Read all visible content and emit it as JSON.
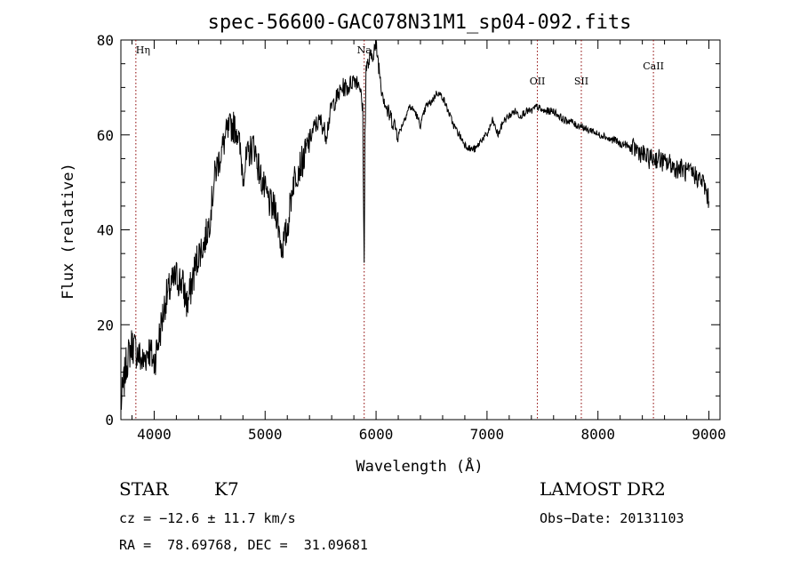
{
  "chart_data": {
    "type": "line",
    "title": "spec-56600-GAC078N31M1_sp04-092.fits",
    "xlabel": "Wavelength (Å)",
    "ylabel": "Flux (relative)",
    "xlim": [
      3700,
      9100
    ],
    "ylim": [
      0,
      80
    ],
    "xticks": [
      4000,
      5000,
      6000,
      7000,
      8000,
      9000
    ],
    "yticks": [
      0,
      20,
      40,
      60,
      80
    ],
    "grid": false,
    "series": [
      {
        "x": [
          3700,
          3750,
          3800,
          3850,
          3900,
          3950,
          4000,
          4050,
          4100,
          4150,
          4200,
          4250,
          4300,
          4350,
          4400,
          4450,
          4500,
          4550,
          4600,
          4650,
          4700,
          4750,
          4800,
          4850,
          4900,
          4950,
          5000,
          5050,
          5100,
          5150,
          5200,
          5250,
          5300,
          5350,
          5400,
          5450,
          5500,
          5550,
          5600,
          5650,
          5700,
          5750,
          5800,
          5850,
          5880,
          5893,
          5900,
          5910,
          5950,
          6000,
          6050,
          6100,
          6150,
          6200,
          6250,
          6300,
          6350,
          6400,
          6450,
          6500,
          6550,
          6600,
          6650,
          6700,
          6750,
          6800,
          6850,
          6900,
          6950,
          7000,
          7050,
          7100,
          7150,
          7200,
          7250,
          7300,
          7350,
          7400,
          7450,
          7500,
          7550,
          7600,
          7650,
          7700,
          7750,
          7800,
          7850,
          7900,
          7950,
          8000,
          8050,
          8100,
          8150,
          8200,
          8250,
          8300,
          8350,
          8400,
          8450,
          8500,
          8550,
          8600,
          8650,
          8700,
          8750,
          8800,
          8850,
          8900,
          8950,
          9000
        ],
        "y": [
          3,
          12,
          16,
          14,
          12,
          15,
          12,
          18,
          25,
          28,
          30,
          29,
          24,
          30,
          35,
          37,
          42,
          52,
          56,
          60,
          62,
          61,
          52,
          56,
          58,
          52,
          48,
          45,
          44,
          36,
          40,
          50,
          53,
          55,
          59,
          62,
          63,
          60,
          66,
          68,
          70,
          70,
          72,
          71,
          65,
          32,
          60,
          74,
          76,
          79,
          70,
          65,
          63,
          60,
          63,
          66,
          65,
          62,
          66,
          67,
          69,
          68,
          65,
          62,
          60,
          58,
          57,
          57,
          59,
          60,
          63,
          60,
          63,
          64,
          65,
          64,
          65,
          65,
          66,
          65,
          65,
          65,
          64,
          63,
          63,
          62,
          62,
          61,
          61,
          60,
          60,
          59,
          59,
          58,
          58,
          57,
          57,
          56,
          55,
          55,
          55,
          54,
          54,
          53,
          53,
          52,
          52,
          51,
          50,
          46
        ]
      }
    ],
    "line_markers": [
      {
        "label": "Hη",
        "x": 3835
      },
      {
        "label": "Na",
        "x": 5893
      },
      {
        "label": "OII",
        "x": 7454
      },
      {
        "label": "SII",
        "x": 7850
      },
      {
        "label": "CaII",
        "x": 8500
      }
    ]
  },
  "info": {
    "object_class": "STAR",
    "subclass": "K7",
    "survey": "LAMOST DR2",
    "cz": "cz = −12.6 ± 11.7 km/s",
    "obs_date": "Obs−Date: 20131103",
    "coords": "RA =  78.69768, DEC =  31.09681"
  },
  "colors": {
    "line_marker": "#8b0000",
    "spectrum": "#000000"
  }
}
